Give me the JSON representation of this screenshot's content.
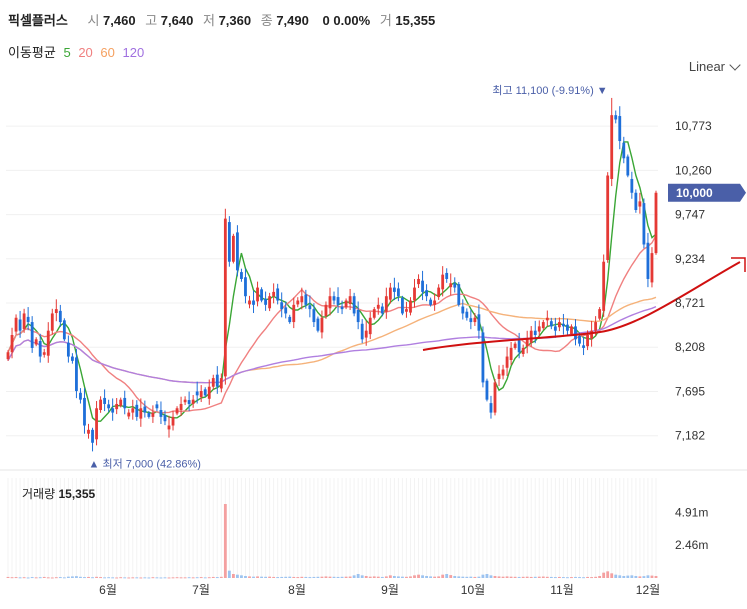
{
  "header": {
    "name": "픽셀플러스",
    "open_label": "시",
    "open": "7,460",
    "high_label": "고",
    "high": "7,640",
    "low_label": "저",
    "low": "7,360",
    "close_label": "종",
    "close": "7,490",
    "change": "0 0.00%",
    "volume_label": "거",
    "volume": "15,355"
  },
  "ma_legend": {
    "label": "이동평균",
    "p5": "5",
    "p20": "20",
    "p60": "60",
    "p120": "120",
    "colors": {
      "p5": "#3aa635",
      "p20": "#f08080",
      "p60": "#f5b27a",
      "p120": "#b07fe0"
    }
  },
  "scale_select": {
    "value": "Linear"
  },
  "price_panel": {
    "y_ticks": [
      10773,
      10260,
      9747,
      9234,
      8721,
      8208,
      7695,
      7182
    ],
    "y_tick_labels": [
      "10,773",
      "10,260",
      "9,747",
      "9,234",
      "8,721",
      "8,208",
      "7,695",
      "7,182"
    ],
    "ylim": [
      6900,
      11250
    ],
    "current_price": 10000,
    "current_price_label": "10,000",
    "current_price_color": "#4a5fa8",
    "max_marker": {
      "label": "최고 11,100 (-9.91%)",
      "value": 11100
    },
    "min_marker": {
      "label": "최저 7,000 (42.86%)",
      "value": 7000
    }
  },
  "x_axis": {
    "labels": [
      "6월",
      "7월",
      "8월",
      "9월",
      "10월",
      "11월",
      "12월"
    ]
  },
  "volume_panel": {
    "label": "거래량",
    "value": "15,355",
    "y_tick_labels": [
      "4.91m",
      "2.46m"
    ],
    "y_ticks": [
      4.91,
      2.46
    ],
    "ylim": [
      0,
      7.5
    ]
  },
  "colors": {
    "up": "#e53935",
    "down": "#1e6fd9",
    "trend_line": "#d01010"
  },
  "chart_data": {
    "type": "candlestick",
    "title": "픽셀플러스",
    "x_labels": [
      "6월",
      "7월",
      "8월",
      "9월",
      "10월",
      "11월",
      "12월"
    ],
    "close_series": [
      8150,
      8350,
      8550,
      8400,
      8600,
      8500,
      8200,
      8300,
      8100,
      8150,
      8400,
      8600,
      8650,
      8500,
      8300,
      8100,
      8050,
      7700,
      7600,
      7300,
      7250,
      7100,
      7500,
      7600,
      7550,
      7500,
      7450,
      7550,
      7600,
      7500,
      7450,
      7500,
      7400,
      7500,
      7450,
      7400,
      7450,
      7500,
      7400,
      7350,
      7300,
      7400,
      7500,
      7550,
      7600,
      7550,
      7600,
      7650,
      7700,
      7650,
      7750,
      7850,
      7750,
      7850,
      9700,
      9200,
      9500,
      9100,
      9000,
      8800,
      8750,
      8700,
      8900,
      8750,
      8700,
      8800,
      8850,
      8750,
      8650,
      8600,
      8500,
      8700,
      8750,
      8800,
      8700,
      8650,
      8500,
      8400,
      8550,
      8700,
      8800,
      8750,
      8700,
      8650,
      8750,
      8800,
      8600,
      8500,
      8300,
      8400,
      8550,
      8650,
      8700,
      8600,
      8800,
      8900,
      8850,
      8800,
      8600,
      8650,
      8750,
      8900,
      9000,
      8850,
      8800,
      8700,
      8750,
      8900,
      9050,
      9000,
      8950,
      8900,
      8700,
      8600,
      8550,
      8500,
      8550,
      8400,
      7800,
      7600,
      7450,
      7800,
      7900,
      7950,
      8100,
      8200,
      8250,
      8150,
      8200,
      8300,
      8400,
      8350,
      8450,
      8500,
      8550,
      8450,
      8400,
      8500,
      8450,
      8400,
      8450,
      8300,
      8250,
      8200,
      8350,
      8400,
      8500,
      8650,
      9200,
      10200,
      10900,
      10850,
      10600,
      10400,
      10200,
      10000,
      9800,
      9900,
      9400,
      9000,
      9300,
      10000
    ],
    "volume_series": [
      0.08,
      0.06,
      0.07,
      0.05,
      0.06,
      0.04,
      0.07,
      0.05,
      0.06,
      0.08,
      0.05,
      0.04,
      0.06,
      0.07,
      0.05,
      0.1,
      0.12,
      0.14,
      0.09,
      0.07,
      0.08,
      0.06,
      0.09,
      0.07,
      0.05,
      0.06,
      0.05,
      0.04,
      0.06,
      0.05,
      0.04,
      0.05,
      0.05,
      0.04,
      0.05,
      0.04,
      0.06,
      0.05,
      0.04,
      0.05,
      0.04,
      0.05,
      0.06,
      0.05,
      0.05,
      0.06,
      0.05,
      0.06,
      0.07,
      0.05,
      0.06,
      0.08,
      0.07,
      0.09,
      5.55,
      0.55,
      0.3,
      0.25,
      0.2,
      0.15,
      0.12,
      0.1,
      0.12,
      0.1,
      0.09,
      0.1,
      0.08,
      0.07,
      0.08,
      0.09,
      0.1,
      0.08,
      0.07,
      0.09,
      0.08,
      0.07,
      0.08,
      0.09,
      0.1,
      0.12,
      0.1,
      0.09,
      0.08,
      0.09,
      0.1,
      0.11,
      0.2,
      0.3,
      0.2,
      0.15,
      0.1,
      0.12,
      0.1,
      0.08,
      0.12,
      0.2,
      0.15,
      0.12,
      0.1,
      0.09,
      0.12,
      0.2,
      0.25,
      0.2,
      0.15,
      0.12,
      0.1,
      0.12,
      0.25,
      0.3,
      0.22,
      0.15,
      0.12,
      0.1,
      0.09,
      0.1,
      0.08,
      0.1,
      0.25,
      0.3,
      0.2,
      0.15,
      0.12,
      0.1,
      0.12,
      0.1,
      0.09,
      0.08,
      0.09,
      0.1,
      0.08,
      0.09,
      0.1,
      0.11,
      0.09,
      0.08,
      0.07,
      0.08,
      0.07,
      0.06,
      0.07,
      0.08,
      0.07,
      0.06,
      0.08,
      0.07,
      0.09,
      0.15,
      0.4,
      0.5,
      0.35,
      0.25,
      0.2,
      0.15,
      0.18,
      0.2,
      0.15,
      0.12,
      0.14,
      0.2,
      0.18,
      0.15
    ],
    "ma_periods": [
      5,
      20,
      60,
      120
    ],
    "ylim": [
      6900,
      11250
    ],
    "high": 11100,
    "low": 7000,
    "last": 10000
  }
}
